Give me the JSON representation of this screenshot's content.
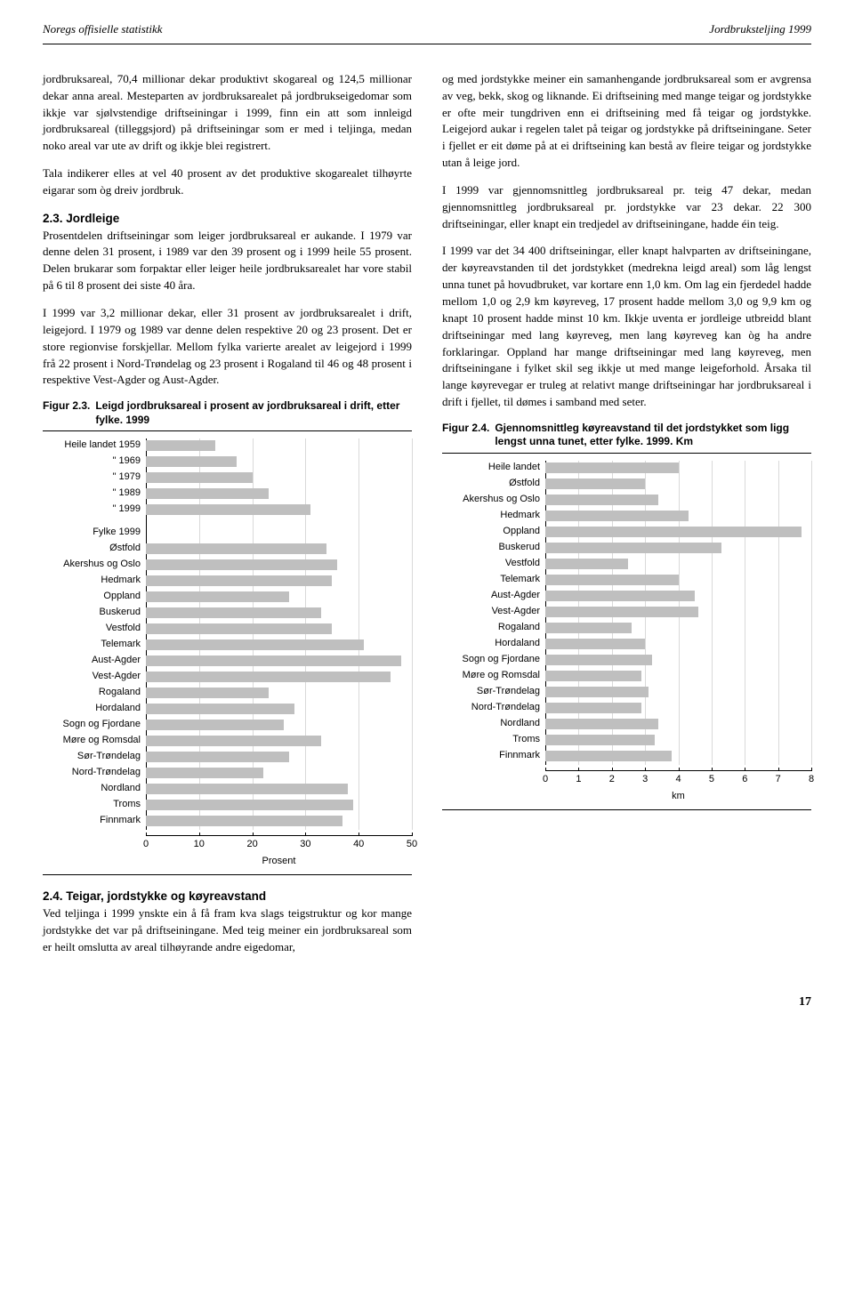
{
  "header": {
    "left": "Noregs offisielle statistikk",
    "right": "Jordbruksteljing 1999"
  },
  "left_col": {
    "p1": "jordbruksareal, 70,4 millionar dekar produktivt skogareal og 124,5 millionar dekar anna areal. Mesteparten av jordbruksarealet på jordbrukseigedomar som ikkje var sjølvstendige driftseiningar i 1999, finn ein att som innleigd jordbruksareal (tilleggsjord) på driftseiningar som er med i teljinga, medan noko areal var ute av drift og ikkje blei registrert.",
    "p2": "Tala indikerer elles at vel 40 prosent av det produktive skogarealet tilhøyrte eigarar som òg dreiv jordbruk.",
    "sec23_head": "2.3. Jordleige",
    "sec23_body": "Prosentdelen driftseiningar som leiger jordbruksareal er aukande. I 1979 var denne delen 31 prosent, i 1989 var den 39 prosent og i 1999 heile 55 prosent. Delen brukarar som forpaktar eller leiger heile jordbruksarealet har vore stabil på 6 til 8 prosent dei siste 40 åra.",
    "p3": "I 1999 var 3,2 millionar dekar, eller 31 prosent av jordbruksarealet i drift, leigejord. I 1979 og 1989 var denne delen respektive 20 og 23 prosent. Det er store regionvise forskjellar. Mellom fylka varierte arealet av leigejord i 1999 frå 22 prosent i Nord-Trøndelag og 23 prosent i Rogaland til 46 og 48 prosent i respektive Vest-Agder og Aust-Agder.",
    "sec24_head": "2.4. Teigar, jordstykke og køyreavstand",
    "sec24_body": "Ved teljinga i 1999 ynskte ein å få fram kva slags teigstruktur og kor mange jordstykke det var på driftseiningane. Med teig meiner ein jordbruksareal som er heilt omslutta av areal tilhøyrande andre eigedomar,"
  },
  "right_col": {
    "p1": "og med jordstykke meiner ein samanhengande jordbruksareal som er avgrensa av veg, bekk, skog og liknande. Ei driftseining med mange teigar og jordstykke er ofte meir tungdriven enn ei driftseining med få teigar og jordstykke. Leigejord aukar i regelen talet på teigar og jordstykke på driftseiningane. Seter i fjellet er eit døme på at ei driftseining kan bestå av fleire teigar og jordstykke utan å leige jord.",
    "p2": "I 1999 var gjennomsnittleg jordbruksareal pr. teig 47 dekar, medan gjennomsnittleg jordbruksareal pr. jordstykke var 23 dekar. 22 300 driftseiningar, eller knapt ein tredjedel av driftseiningane, hadde éin teig.",
    "p3": "I 1999 var det 34 400 driftseiningar, eller knapt halvparten av driftseiningane, der køyreavstanden til det jordstykket (medrekna leigd areal) som låg lengst unna tunet på hovudbruket, var kortare enn 1,0 km. Om lag ein fjerdedel hadde mellom 1,0 og 2,9 km køyreveg, 17 prosent hadde mellom 3,0 og 9,9 km og knapt 10 prosent hadde minst 10 km. Ikkje uventa er jordleige utbreidd blant driftseiningar med lang køyreveg, men lang køyreveg kan òg ha andre forklaringar. Oppland har mange driftseiningar med lang køyreveg, men driftseiningane i fylket skil seg ikkje ut med mange leigeforhold. Årsaka til lange køyrevegar er truleg at relativt mange driftseiningar har jordbruksareal i drift i fjellet, til dømes i samband med seter."
  },
  "fig23": {
    "no": "Figur 2.3.",
    "title": "Leigd jordbruksareal i prosent av jordbruksareal i drift, etter fylke. 1999",
    "type": "bar",
    "xmax": 50,
    "xtick_step": 10,
    "ticks": [
      0,
      10,
      20,
      30,
      40,
      50
    ],
    "axis_label": "Prosent",
    "bar_color": "#bfbfbf",
    "grid_color": "#d9d9d9",
    "background_color": "#ffffff",
    "label_fontsize": 11,
    "rows": [
      {
        "label": "Heile landet 1959",
        "value": 13
      },
      {
        "label": "\"             1969",
        "value": 17
      },
      {
        "label": "\"             1979",
        "value": 20
      },
      {
        "label": "\"             1989",
        "value": 23
      },
      {
        "label": "\"             1999",
        "value": 31
      },
      {
        "gap": true
      },
      {
        "label": "Fylke 1999",
        "value": null
      },
      {
        "label": "Østfold",
        "value": 34
      },
      {
        "label": "Akershus og Oslo",
        "value": 36
      },
      {
        "label": "Hedmark",
        "value": 35
      },
      {
        "label": "Oppland",
        "value": 27
      },
      {
        "label": "Buskerud",
        "value": 33
      },
      {
        "label": "Vestfold",
        "value": 35
      },
      {
        "label": "Telemark",
        "value": 41
      },
      {
        "label": "Aust-Agder",
        "value": 48
      },
      {
        "label": "Vest-Agder",
        "value": 46
      },
      {
        "label": "Rogaland",
        "value": 23
      },
      {
        "label": "Hordaland",
        "value": 28
      },
      {
        "label": "Sogn og Fjordane",
        "value": 26
      },
      {
        "label": "Møre og Romsdal",
        "value": 33
      },
      {
        "label": "Sør-Trøndelag",
        "value": 27
      },
      {
        "label": "Nord-Trøndelag",
        "value": 22
      },
      {
        "label": "Nordland",
        "value": 38
      },
      {
        "label": "Troms",
        "value": 39
      },
      {
        "label": "Finnmark",
        "value": 37
      }
    ]
  },
  "fig24": {
    "no": "Figur 2.4.",
    "title": "Gjennomsnittleg køyreavstand til det jordstykket som ligg lengst unna tunet, etter fylke. 1999. Km",
    "type": "bar",
    "xmax": 8,
    "xtick_step": 1,
    "ticks": [
      0,
      1,
      2,
      3,
      4,
      5,
      6,
      7,
      8
    ],
    "axis_label": "km",
    "bar_color": "#bfbfbf",
    "grid_color": "#d9d9d9",
    "background_color": "#ffffff",
    "label_fontsize": 11,
    "rows": [
      {
        "label": "Heile landet",
        "value": 4.0
      },
      {
        "label": "Østfold",
        "value": 3.0
      },
      {
        "label": "Akershus og Oslo",
        "value": 3.4
      },
      {
        "label": "Hedmark",
        "value": 4.3
      },
      {
        "label": "Oppland",
        "value": 7.7
      },
      {
        "label": "Buskerud",
        "value": 5.3
      },
      {
        "label": "Vestfold",
        "value": 2.5
      },
      {
        "label": "Telemark",
        "value": 4.0
      },
      {
        "label": "Aust-Agder",
        "value": 4.5
      },
      {
        "label": "Vest-Agder",
        "value": 4.6
      },
      {
        "label": "Rogaland",
        "value": 2.6
      },
      {
        "label": "Hordaland",
        "value": 3.0
      },
      {
        "label": "Sogn og Fjordane",
        "value": 3.2
      },
      {
        "label": "Møre og Romsdal",
        "value": 2.9
      },
      {
        "label": "Sør-Trøndelag",
        "value": 3.1
      },
      {
        "label": "Nord-Trøndelag",
        "value": 2.9
      },
      {
        "label": "Nordland",
        "value": 3.4
      },
      {
        "label": "Troms",
        "value": 3.3
      },
      {
        "label": "Finnmark",
        "value": 3.8
      }
    ]
  },
  "page_number": "17"
}
